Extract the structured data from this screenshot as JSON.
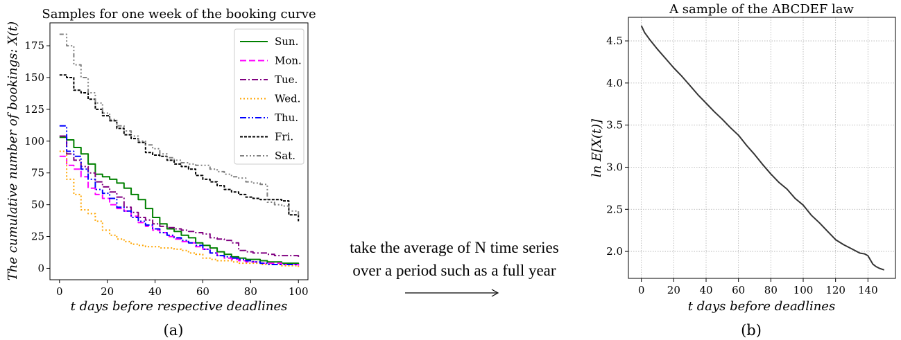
{
  "chart_data": [
    {
      "type": "line",
      "title": "Samples for one week of the booking curve",
      "xlabel": "t days before respective deadlines",
      "ylabel": "The cumulative number of bookings: X(t)",
      "xlim": [
        -4,
        104
      ],
      "ylim": [
        -9,
        193
      ],
      "xticks": [
        0,
        20,
        40,
        60,
        80,
        100
      ],
      "yticks": [
        0,
        25,
        50,
        75,
        100,
        125,
        150,
        175
      ],
      "grid": false,
      "legend": "top-right",
      "caption": "(a)",
      "series": [
        {
          "name": "Sun.",
          "color": "#008000",
          "dash": "solid",
          "x": [
            0,
            3,
            6,
            9,
            12,
            15,
            18,
            21,
            24,
            27,
            30,
            33,
            36,
            39,
            42,
            45,
            48,
            51,
            54,
            57,
            60,
            63,
            66,
            69,
            72,
            75,
            78,
            81,
            84,
            87,
            90,
            93,
            96,
            100
          ],
          "y": [
            103,
            101,
            95,
            90,
            82,
            74,
            72,
            70,
            67,
            63,
            58,
            54,
            47,
            40,
            35,
            31,
            29,
            26,
            24,
            20,
            18,
            16,
            13,
            11,
            9,
            8,
            7,
            7,
            6,
            5,
            5,
            4,
            4,
            3
          ]
        },
        {
          "name": "Mon.",
          "color": "#ff00ff",
          "dash": "dashed",
          "x": [
            0,
            3,
            6,
            9,
            12,
            15,
            18,
            21,
            24,
            27,
            30,
            33,
            36,
            39,
            42,
            45,
            48,
            51,
            54,
            57,
            60,
            63,
            66,
            69,
            72,
            75,
            78,
            81,
            84,
            87,
            90,
            93,
            96,
            100
          ],
          "y": [
            88,
            81,
            78,
            72,
            63,
            58,
            55,
            50,
            47,
            45,
            41,
            36,
            33,
            30,
            28,
            25,
            23,
            21,
            20,
            17,
            15,
            12,
            10,
            8,
            7,
            6,
            5,
            5,
            4,
            4,
            4,
            3,
            3,
            2
          ]
        },
        {
          "name": "Tue.",
          "color": "#800080",
          "dash": "dashdot",
          "x": [
            0,
            3,
            6,
            9,
            12,
            15,
            18,
            21,
            24,
            27,
            30,
            33,
            36,
            39,
            42,
            45,
            48,
            51,
            54,
            57,
            60,
            63,
            66,
            69,
            72,
            75,
            78,
            81,
            84,
            87,
            90,
            93,
            96,
            100
          ],
          "y": [
            104,
            90,
            85,
            80,
            75,
            68,
            64,
            60,
            56,
            48,
            44,
            40,
            38,
            35,
            33,
            32,
            31,
            30,
            29,
            28,
            27,
            24,
            23,
            22,
            20,
            14,
            13,
            12,
            12,
            11,
            10,
            10,
            10,
            9
          ]
        },
        {
          "name": "Wed.",
          "color": "#ffa500",
          "dash": "dotted",
          "x": [
            0,
            3,
            6,
            9,
            12,
            15,
            18,
            21,
            24,
            27,
            30,
            33,
            36,
            39,
            42,
            45,
            48,
            51,
            54,
            57,
            60,
            63,
            66,
            69,
            72,
            75,
            78,
            81,
            84,
            87,
            90,
            93,
            96,
            100
          ],
          "y": [
            92,
            70,
            58,
            46,
            43,
            37,
            30,
            26,
            23,
            21,
            19,
            18,
            17,
            17,
            16,
            16,
            15,
            14,
            12,
            11,
            8,
            7,
            6,
            6,
            5,
            4,
            4,
            4,
            3,
            3,
            3,
            2,
            2,
            1
          ]
        },
        {
          "name": "Thu.",
          "color": "#0000ff",
          "dash": "dashdotdot",
          "x": [
            0,
            3,
            6,
            9,
            12,
            15,
            18,
            21,
            24,
            27,
            30,
            33,
            36,
            39,
            42,
            45,
            48,
            51,
            54,
            57,
            60,
            63,
            66,
            69,
            72,
            75,
            78,
            81,
            84,
            87,
            90,
            93,
            96,
            100
          ],
          "y": [
            112,
            92,
            88,
            78,
            70,
            62,
            59,
            55,
            48,
            45,
            40,
            37,
            34,
            31,
            28,
            26,
            24,
            22,
            20,
            18,
            15,
            12,
            10,
            9,
            8,
            7,
            6,
            5,
            4,
            3,
            3,
            3,
            3,
            3
          ]
        },
        {
          "name": "Fri.",
          "color": "#000000",
          "dash": "densedashed",
          "x": [
            0,
            3,
            6,
            9,
            12,
            15,
            18,
            21,
            24,
            27,
            30,
            33,
            36,
            39,
            42,
            45,
            48,
            51,
            54,
            57,
            60,
            63,
            66,
            69,
            72,
            75,
            78,
            81,
            84,
            87,
            90,
            93,
            96,
            100
          ],
          "y": [
            152,
            150,
            140,
            138,
            133,
            125,
            120,
            116,
            110,
            105,
            102,
            99,
            91,
            89,
            88,
            85,
            82,
            80,
            78,
            73,
            70,
            68,
            65,
            62,
            60,
            58,
            56,
            55,
            54,
            54,
            54,
            53,
            42,
            37
          ]
        },
        {
          "name": "Sat.",
          "color": "#808080",
          "dash": "dashdotdotdot",
          "x": [
            0,
            3,
            6,
            9,
            12,
            15,
            18,
            21,
            24,
            27,
            30,
            33,
            36,
            39,
            42,
            45,
            48,
            51,
            54,
            57,
            60,
            63,
            66,
            69,
            72,
            75,
            78,
            81,
            84,
            87,
            90,
            93,
            96,
            100
          ],
          "y": [
            184,
            175,
            160,
            150,
            138,
            130,
            122,
            117,
            112,
            108,
            104,
            100,
            97,
            94,
            90,
            87,
            85,
            83,
            82,
            81,
            81,
            78,
            76,
            74,
            72,
            71,
            68,
            67,
            66,
            52,
            50,
            49,
            45,
            40
          ]
        }
      ]
    },
    {
      "type": "line",
      "title": "A sample of the ABCDEF law",
      "xlabel": "t days before deadlines",
      "ylabel": "ln E[X(t)]",
      "xlim": [
        -8,
        157
      ],
      "ylim": [
        1.68,
        4.78
      ],
      "xticks": [
        0,
        20,
        40,
        60,
        80,
        100,
        120,
        140
      ],
      "yticks": [
        2.0,
        2.5,
        3.0,
        3.5,
        4.0,
        4.5
      ],
      "grid": true,
      "caption": "(b)",
      "series": [
        {
          "color": "#333333",
          "x": [
            0,
            2,
            5,
            10,
            15,
            20,
            25,
            30,
            35,
            40,
            45,
            50,
            55,
            60,
            65,
            70,
            75,
            80,
            85,
            90,
            95,
            100,
            105,
            110,
            115,
            120,
            125,
            130,
            135,
            138,
            140,
            143,
            145,
            147,
            150
          ],
          "y": [
            4.68,
            4.6,
            4.52,
            4.4,
            4.29,
            4.18,
            4.08,
            3.97,
            3.86,
            3.76,
            3.66,
            3.57,
            3.47,
            3.38,
            3.26,
            3.15,
            3.03,
            2.92,
            2.82,
            2.74,
            2.63,
            2.55,
            2.43,
            2.34,
            2.24,
            2.14,
            2.08,
            2.03,
            1.98,
            1.97,
            1.95,
            1.85,
            1.82,
            1.8,
            1.78
          ]
        }
      ]
    }
  ],
  "middle": {
    "line1": "take the average of N time series",
    "line2": "over a period such as a full year"
  }
}
